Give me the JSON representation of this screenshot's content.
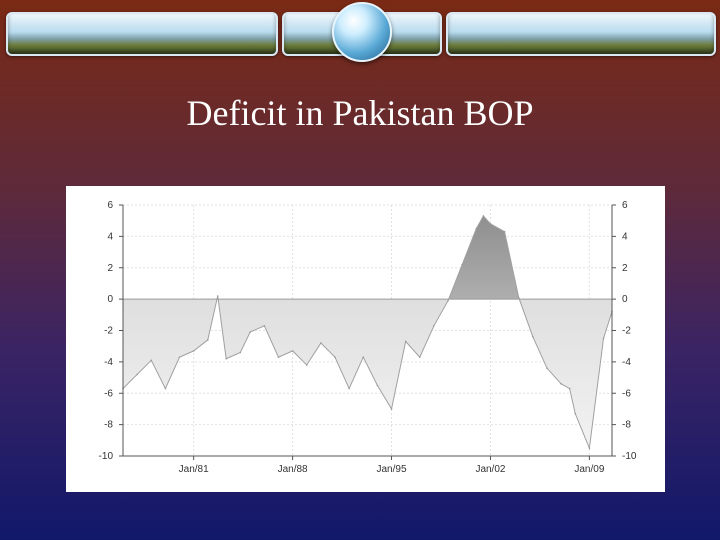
{
  "title": "Deficit in Pakistan BOP",
  "chart_data": {
    "type": "area",
    "title": "",
    "xlabel": "",
    "ylabel": "",
    "ylim": [
      -10,
      6
    ],
    "xlim": [
      1976.0,
      2010.6
    ],
    "grid": true,
    "y_ticks": [
      6,
      4,
      2,
      0,
      -2,
      -4,
      -6,
      -8,
      -10
    ],
    "y_tick_labels": [
      "6",
      "4",
      "2",
      "0",
      "-2",
      "-4",
      "-6",
      "-8",
      "-10"
    ],
    "x_ticks": [
      {
        "value": 1981.0,
        "label": "Jan/81"
      },
      {
        "value": 1988.0,
        "label": "Jan/88"
      },
      {
        "value": 1995.0,
        "label": "Jan/95"
      },
      {
        "value": 2002.0,
        "label": "Jan/02"
      },
      {
        "value": 2009.0,
        "label": "Jan/09"
      }
    ],
    "series": [
      {
        "x": [
          1976.0,
          1977.0,
          1978.0,
          1979.0,
          1980.0,
          1981.0,
          1982.0,
          1982.7,
          1983.3,
          1984.3,
          1985.0,
          1986.0,
          1987.0,
          1988.0,
          1989.0,
          1990.0,
          1991.0,
          1992.0,
          1993.0,
          1994.0,
          1995.0,
          1996.0,
          1997.0,
          1998.0,
          1999.0,
          2000.0,
          2001.0,
          2001.5,
          2002.0,
          2003.0,
          2004.0,
          2005.0,
          2006.0,
          2007.0,
          2007.6,
          2008.0,
          2009.0,
          2010.0,
          2010.6
        ],
        "values": [
          -5.7,
          -4.8,
          -3.9,
          -5.7,
          -3.7,
          -3.3,
          -2.6,
          0.2,
          -3.8,
          -3.4,
          -2.1,
          -1.7,
          -3.7,
          -3.3,
          -4.2,
          -2.8,
          -3.7,
          -5.7,
          -3.7,
          -5.5,
          -7.0,
          -2.7,
          -3.7,
          -1.7,
          -0.1,
          2.2,
          4.5,
          5.3,
          4.8,
          4.3,
          0.1,
          -2.4,
          -4.4,
          -5.4,
          -5.7,
          -7.3,
          -9.5,
          -2.5,
          -0.8
        ],
        "color": "#a0a0a0"
      }
    ]
  }
}
